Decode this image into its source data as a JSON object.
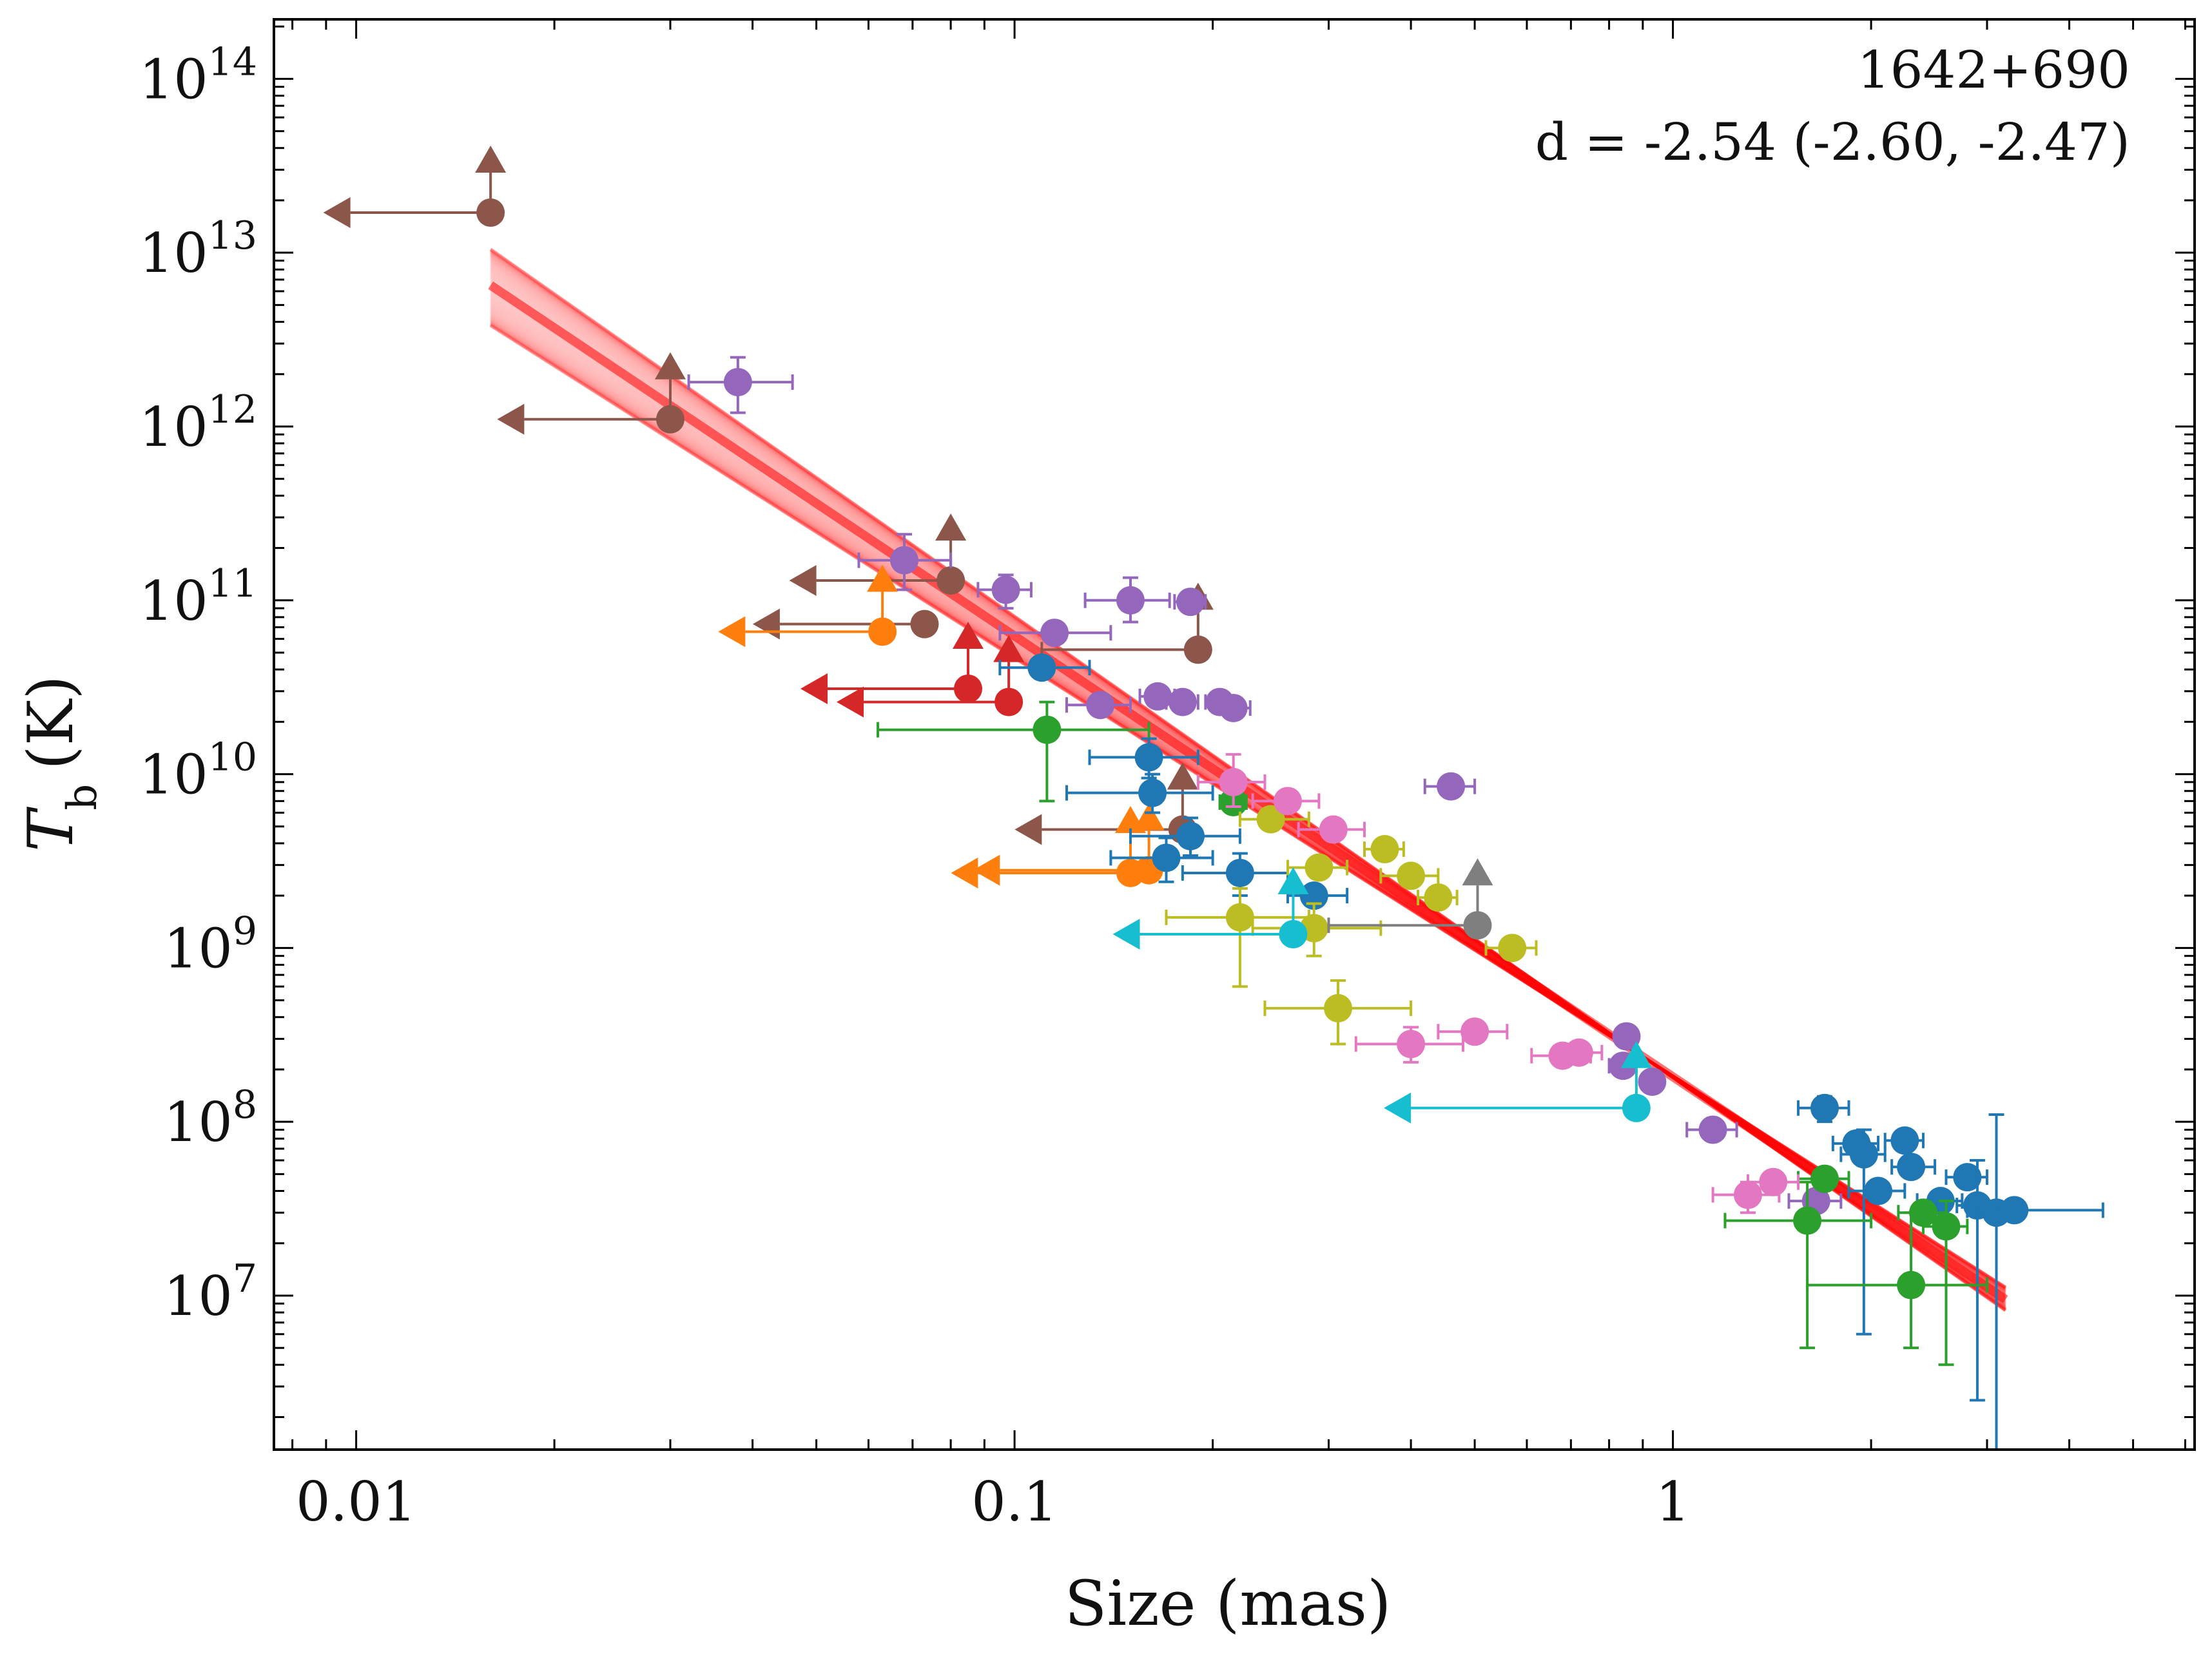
{
  "chart_data": {
    "type": "scatter",
    "title": "",
    "xlabel": "Size (mas)",
    "ylabel_main": "T",
    "ylabel_sub": "b",
    "ylabel_unit": "(K)",
    "xscale": "log",
    "yscale": "log",
    "xlim": [
      0.0075,
      6.2
    ],
    "ylim": [
      1300000.0,
      220000000000000.0
    ],
    "x_ticks": [
      {
        "value": 0.01,
        "label": "0.01"
      },
      {
        "value": 0.1,
        "label": "0.1"
      },
      {
        "value": 1,
        "label": "1"
      }
    ],
    "y_ticks": [
      {
        "value": 10000000.0,
        "base": "10",
        "exp": "7"
      },
      {
        "value": 100000000.0,
        "base": "10",
        "exp": "8"
      },
      {
        "value": 1000000000.0,
        "base": "10",
        "exp": "9"
      },
      {
        "value": 10000000000.0,
        "base": "10",
        "exp": "10"
      },
      {
        "value": 100000000000.0,
        "base": "10",
        "exp": "11"
      },
      {
        "value": 1000000000000.0,
        "base": "10",
        "exp": "12"
      },
      {
        "value": 10000000000000.0,
        "base": "10",
        "exp": "13"
      },
      {
        "value": 100000000000000.0,
        "base": "10",
        "exp": "14"
      }
    ],
    "annotation": {
      "source": "1642+690",
      "fit": "d = -2.54 (-2.60, -2.47)"
    },
    "fit_line": {
      "color": "#ff0000",
      "x_range": [
        0.016,
        3.2
      ],
      "y_range_center": [
        6500000000000.0,
        9500000.0
      ],
      "y_start_spread": [
        3800000000000.0,
        10500000000000.0
      ],
      "y_end_spread": [
        8200000.0,
        11200000.0
      ],
      "n_lines": 60
    },
    "series": [
      {
        "name": "brown",
        "color": "#8c564b",
        "points": [
          {
            "x": 0.016,
            "y": 17000000000000.0,
            "xlo": 0.0098,
            "xhi": 0.016,
            "upper_x": true,
            "lower_y": true
          },
          {
            "x": 0.03,
            "y": 1100000000000.0,
            "xlo": 0.018,
            "xhi": 0.03,
            "upper_x": true,
            "lower_y": true
          },
          {
            "x": 0.08,
            "y": 130000000000.0,
            "xlo": 0.05,
            "xhi": 0.08,
            "upper_x": true,
            "lower_y": true
          },
          {
            "x": 0.073,
            "y": 73000000000.0,
            "xlo": 0.044,
            "xhi": 0.073,
            "upper_x": true
          },
          {
            "x": 0.19,
            "y": 52000000000.0,
            "xlo": 0.11,
            "xhi": 0.19,
            "lower_y": true
          },
          {
            "x": 0.18,
            "y": 4800000000.0,
            "xlo": 0.11,
            "xhi": 0.18,
            "upper_x": true,
            "lower_y": true
          }
        ]
      },
      {
        "name": "purple",
        "color": "#9467bd",
        "points": [
          {
            "x": 0.038,
            "y": 1800000000000.0,
            "xlo": 0.032,
            "xhi": 0.046,
            "ylo": 1200000000000.0,
            "yhi": 2500000000000.0
          },
          {
            "x": 0.068,
            "y": 170000000000.0,
            "xlo": 0.058,
            "xhi": 0.08,
            "ylo": 115000000000.0,
            "yhi": 240000000000.0
          },
          {
            "x": 0.097,
            "y": 115000000000.0,
            "xlo": 0.088,
            "xhi": 0.106,
            "ylo": 90000000000.0,
            "yhi": 140000000000.0
          },
          {
            "x": 0.15,
            "y": 100000000000.0,
            "xlo": 0.128,
            "xhi": 0.172,
            "ylo": 75000000000.0,
            "yhi": 135000000000.0
          },
          {
            "x": 0.185,
            "y": 98000000000.0,
            "xlo": 0.175,
            "xhi": 0.195
          },
          {
            "x": 0.115,
            "y": 65000000000.0,
            "xlo": 0.095,
            "xhi": 0.14
          },
          {
            "x": 0.135,
            "y": 25000000000.0,
            "xlo": 0.12,
            "xhi": 0.15
          },
          {
            "x": 0.165,
            "y": 28000000000.0,
            "xlo": 0.155,
            "xhi": 0.175
          },
          {
            "x": 0.18,
            "y": 26000000000.0,
            "xlo": 0.17,
            "xhi": 0.19
          },
          {
            "x": 0.205,
            "y": 26000000000.0,
            "xlo": 0.195,
            "xhi": 0.215
          },
          {
            "x": 0.215,
            "y": 24000000000.0,
            "xlo": 0.205,
            "xhi": 0.228
          },
          {
            "x": 0.46,
            "y": 8500000000.0,
            "xlo": 0.42,
            "xhi": 0.5
          },
          {
            "x": 0.85,
            "y": 310000000.0,
            "xlo": 0.82,
            "xhi": 0.88
          },
          {
            "x": 0.84,
            "y": 210000000.0,
            "xlo": 0.8,
            "xhi": 0.88
          },
          {
            "x": 0.93,
            "y": 170000000.0,
            "xlo": 0.9,
            "xhi": 0.96
          },
          {
            "x": 1.15,
            "y": 90000000.0,
            "xlo": 1.05,
            "xhi": 1.25
          },
          {
            "x": 1.65,
            "y": 35000000.0,
            "xlo": 1.5,
            "xhi": 1.8
          }
        ]
      },
      {
        "name": "orange",
        "color": "#ff7f0e",
        "points": [
          {
            "x": 0.063,
            "y": 66000000000.0,
            "xlo": 0.039,
            "xhi": 0.063,
            "upper_x": true,
            "lower_y": true
          },
          {
            "x": 0.15,
            "y": 2700000000.0,
            "xlo": 0.088,
            "xhi": 0.15,
            "upper_x": true,
            "lower_y": true
          },
          {
            "x": 0.16,
            "y": 2800000000.0,
            "xlo": 0.095,
            "xhi": 0.16,
            "upper_x": true,
            "lower_y": true
          }
        ]
      },
      {
        "name": "red",
        "color": "#d62728",
        "points": [
          {
            "x": 0.085,
            "y": 31000000000.0,
            "xlo": 0.052,
            "xhi": 0.085,
            "upper_x": true,
            "lower_y": true
          },
          {
            "x": 0.098,
            "y": 26000000000.0,
            "xlo": 0.059,
            "xhi": 0.098,
            "upper_x": true,
            "lower_y": true
          }
        ]
      },
      {
        "name": "blue",
        "color": "#1f77b4",
        "points": [
          {
            "x": 0.11,
            "y": 41000000000.0,
            "xlo": 0.095,
            "xhi": 0.13
          },
          {
            "x": 0.16,
            "y": 12500000000.0,
            "xlo": 0.13,
            "xhi": 0.19,
            "ylo": 9500000000.0,
            "yhi": 16000000000.0
          },
          {
            "x": 0.162,
            "y": 7800000000.0,
            "xlo": 0.12,
            "xhi": 0.2,
            "ylo": 6000000000.0,
            "yhi": 10000000000.0
          },
          {
            "x": 0.17,
            "y": 3300000000.0,
            "xlo": 0.14,
            "xhi": 0.2,
            "ylo": 2400000000.0,
            "yhi": 4300000000.0
          },
          {
            "x": 0.185,
            "y": 4400000000.0,
            "xlo": 0.15,
            "xhi": 0.22,
            "ylo": 3400000000.0,
            "yhi": 5600000000.0
          },
          {
            "x": 0.22,
            "y": 2700000000.0,
            "xlo": 0.18,
            "xhi": 0.26,
            "ylo": 2000000000.0,
            "yhi": 3500000000.0
          },
          {
            "x": 0.285,
            "y": 2000000000.0,
            "xlo": 0.26,
            "xhi": 0.32
          },
          {
            "x": 1.7,
            "y": 120000000.0,
            "xlo": 1.55,
            "xhi": 1.85,
            "ylo": 100000000.0,
            "yhi": 140000000.0
          },
          {
            "x": 1.9,
            "y": 75000000.0,
            "xlo": 1.75,
            "xhi": 2.05
          },
          {
            "x": 1.95,
            "y": 65000000.0,
            "xlo": 1.8,
            "xhi": 2.1,
            "ylo": 6000000.0,
            "yhi": 90000000.0
          },
          {
            "x": 2.25,
            "y": 78000000.0,
            "xlo": 2.1,
            "xhi": 2.4
          },
          {
            "x": 2.3,
            "y": 55000000.0,
            "xlo": 2.15,
            "xhi": 2.5
          },
          {
            "x": 2.05,
            "y": 40000000.0,
            "xlo": 1.85,
            "xhi": 2.25
          },
          {
            "x": 2.55,
            "y": 35000000.0,
            "xlo": 2.35,
            "xhi": 2.75
          },
          {
            "x": 2.8,
            "y": 48000000.0,
            "xlo": 2.6,
            "xhi": 3.0
          },
          {
            "x": 2.9,
            "y": 33000000.0,
            "xlo": 2.7,
            "xhi": 3.1,
            "ylo": 2500000.0,
            "yhi": 60000000.0
          },
          {
            "x": 3.1,
            "y": 30000000.0,
            "xlo": 2.9,
            "xhi": 3.3,
            "ylo": 1300000.0,
            "yhi": 110000000.0
          },
          {
            "x": 3.3,
            "y": 31000000.0,
            "xlo": 2.8,
            "xhi": 4.5
          }
        ]
      },
      {
        "name": "green",
        "color": "#2ca02c",
        "points": [
          {
            "x": 0.112,
            "y": 18000000000.0,
            "xlo": 0.062,
            "xhi": 0.16,
            "ylo": 7000000000.0,
            "yhi": 26000000000.0
          },
          {
            "x": 0.215,
            "y": 6900000000.0,
            "xlo": 0.205,
            "xhi": 0.225
          },
          {
            "x": 1.6,
            "y": 27000000.0,
            "xlo": 1.2,
            "xhi": 2.0,
            "ylo": 5000000.0,
            "yhi": 45000000.0
          },
          {
            "x": 1.7,
            "y": 47000000.0,
            "xlo": 1.55,
            "xhi": 1.85
          },
          {
            "x": 2.3,
            "y": 11500000.0,
            "xlo": 1.6,
            "xhi": 3.0,
            "ylo": 5000000.0,
            "yhi": 30000000.0
          },
          {
            "x": 2.4,
            "y": 30000000.0,
            "xlo": 2.2,
            "xhi": 2.6
          },
          {
            "x": 2.6,
            "y": 25000000.0,
            "xlo": 2.4,
            "xhi": 2.8,
            "ylo": 4000000.0,
            "yhi": 35000000.0
          }
        ]
      },
      {
        "name": "olive",
        "color": "#bcbd22",
        "points": [
          {
            "x": 0.22,
            "y": 1500000000.0,
            "xlo": 0.17,
            "xhi": 0.28,
            "ylo": 600000000.0,
            "yhi": 2200000000.0
          },
          {
            "x": 0.245,
            "y": 5500000000.0,
            "xlo": 0.22,
            "xhi": 0.28
          },
          {
            "x": 0.29,
            "y": 2900000000.0,
            "xlo": 0.26,
            "xhi": 0.32
          },
          {
            "x": 0.285,
            "y": 1300000000.0,
            "xlo": 0.23,
            "xhi": 0.36,
            "ylo": 900000000.0,
            "yhi": 1800000000.0
          },
          {
            "x": 0.31,
            "y": 450000000.0,
            "xlo": 0.24,
            "xhi": 0.4,
            "ylo": 280000000.0,
            "yhi": 650000000.0
          },
          {
            "x": 0.365,
            "y": 3700000000.0,
            "xlo": 0.34,
            "xhi": 0.39
          },
          {
            "x": 0.4,
            "y": 2600000000.0,
            "xlo": 0.36,
            "xhi": 0.44
          },
          {
            "x": 0.44,
            "y": 1950000000.0,
            "xlo": 0.41,
            "xhi": 0.47
          },
          {
            "x": 0.57,
            "y": 1000000000.0,
            "xlo": 0.52,
            "xhi": 0.62
          }
        ]
      },
      {
        "name": "pink",
        "color": "#e377c2",
        "points": [
          {
            "x": 0.215,
            "y": 9000000000.0,
            "xlo": 0.19,
            "xhi": 0.24,
            "ylo": 6500000000.0,
            "yhi": 13000000000.0
          },
          {
            "x": 0.26,
            "y": 7000000000.0,
            "xlo": 0.23,
            "xhi": 0.29
          },
          {
            "x": 0.305,
            "y": 4800000000.0,
            "xlo": 0.27,
            "xhi": 0.34
          },
          {
            "x": 0.4,
            "y": 280000000.0,
            "xlo": 0.33,
            "xhi": 0.48,
            "ylo": 220000000.0,
            "yhi": 350000000.0
          },
          {
            "x": 0.5,
            "y": 330000000.0,
            "xlo": 0.44,
            "xhi": 0.56
          },
          {
            "x": 0.68,
            "y": 240000000.0,
            "xlo": 0.61,
            "xhi": 0.75
          },
          {
            "x": 0.72,
            "y": 250000000.0,
            "xlo": 0.66,
            "xhi": 0.78
          },
          {
            "x": 1.3,
            "y": 38000000.0,
            "xlo": 1.15,
            "xhi": 1.45,
            "ylo": 30000000.0,
            "yhi": 45000000.0
          },
          {
            "x": 1.42,
            "y": 45000000.0,
            "xlo": 1.3,
            "xhi": 1.55
          }
        ]
      },
      {
        "name": "cyan",
        "color": "#17becf",
        "points": [
          {
            "x": 0.265,
            "y": 1200000000.0,
            "xlo": 0.155,
            "xhi": 0.265,
            "upper_x": true,
            "lower_y": true
          },
          {
            "x": 0.88,
            "y": 120000000.0,
            "xlo": 0.4,
            "xhi": 0.88,
            "upper_x": true,
            "lower_y": true
          }
        ]
      },
      {
        "name": "gray",
        "color": "#7f7f7f",
        "points": [
          {
            "x": 0.505,
            "y": 1350000000.0,
            "xlo": 0.3,
            "xhi": 0.505,
            "lower_y": true
          }
        ]
      }
    ]
  }
}
